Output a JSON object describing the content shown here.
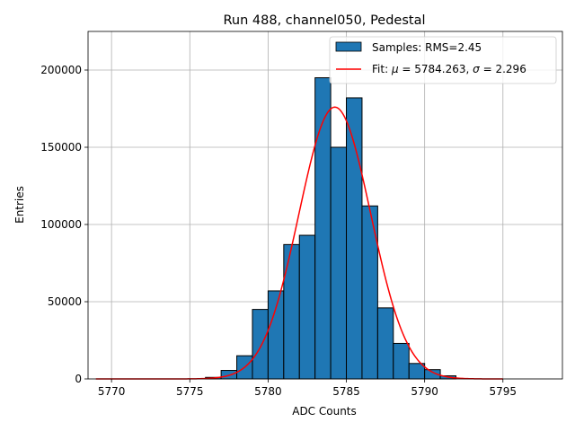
{
  "chart_data": {
    "type": "bar",
    "title": "Run 488, channel050, Pedestal",
    "xlabel": "ADC Counts",
    "ylabel": "Entries",
    "xlim": [
      5768.5,
      5798.8
    ],
    "ylim": [
      0,
      225000
    ],
    "xticks": [
      5770,
      5775,
      5780,
      5785,
      5790,
      5795
    ],
    "yticks": [
      0,
      50000,
      100000,
      150000,
      200000
    ],
    "grid": true,
    "legend_placement": "top-right",
    "bar_color": "#1f77b4",
    "fit_color": "#ff0000",
    "histogram": {
      "name": "Samples: RMS=2.45",
      "bin_width": 1,
      "bins": [
        {
          "x0": 5776,
          "count": 1000
        },
        {
          "x0": 5777,
          "count": 5500
        },
        {
          "x0": 5778,
          "count": 15000
        },
        {
          "x0": 5779,
          "count": 45000
        },
        {
          "x0": 5780,
          "count": 57000
        },
        {
          "x0": 5781,
          "count": 87000
        },
        {
          "x0": 5782,
          "count": 93000
        },
        {
          "x0": 5783,
          "count": 195000
        },
        {
          "x0": 5784,
          "count": 150000
        },
        {
          "x0": 5785,
          "count": 182000
        },
        {
          "x0": 5786,
          "count": 112000
        },
        {
          "x0": 5787,
          "count": 46000
        },
        {
          "x0": 5788,
          "count": 23000
        },
        {
          "x0": 5789,
          "count": 10000
        },
        {
          "x0": 5790,
          "count": 6000
        },
        {
          "x0": 5791,
          "count": 2000
        }
      ]
    },
    "fit": {
      "name_prefix": "Fit: ",
      "mu_label": "μ",
      "sigma_label": "σ",
      "mu": 5784.263,
      "sigma": 2.296,
      "amplitude": 176000,
      "x_range": [
        5769,
        5795
      ]
    }
  }
}
